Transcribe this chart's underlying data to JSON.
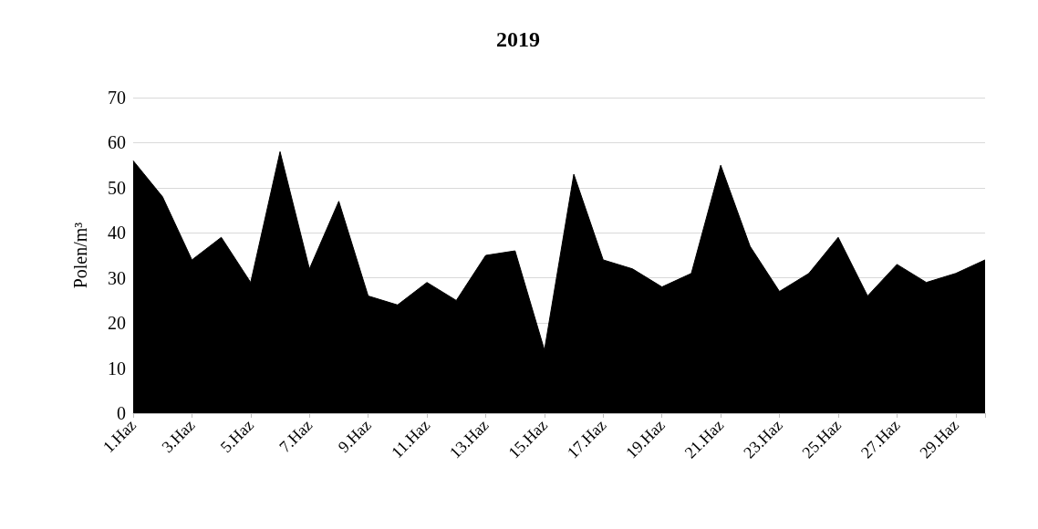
{
  "chart_data": {
    "type": "area",
    "title": "2019",
    "ylabel": "Polen/m³",
    "categories": [
      "1.Haz",
      null,
      "3.Haz",
      null,
      "5.Haz",
      null,
      "7.Haz",
      null,
      "9.Haz",
      null,
      "11.Haz",
      null,
      "13.Haz",
      null,
      "15.Haz",
      null,
      "17.Haz",
      null,
      "19.Haz",
      null,
      "21.Haz",
      null,
      "23.Haz",
      null,
      "25.Haz",
      null,
      "27.Haz",
      null,
      "29.Haz",
      null
    ],
    "values": [
      56,
      48,
      34,
      39,
      29,
      58,
      32,
      47,
      26,
      24,
      29,
      25,
      35,
      36,
      14,
      53,
      34,
      32,
      28,
      31,
      55,
      37,
      27,
      31,
      39,
      26,
      33,
      29,
      31,
      34
    ],
    "color": "#000000",
    "ylim": [
      0,
      70
    ],
    "yticks": [
      0,
      10,
      20,
      30,
      40,
      50,
      60,
      70
    ],
    "grid": "y"
  }
}
